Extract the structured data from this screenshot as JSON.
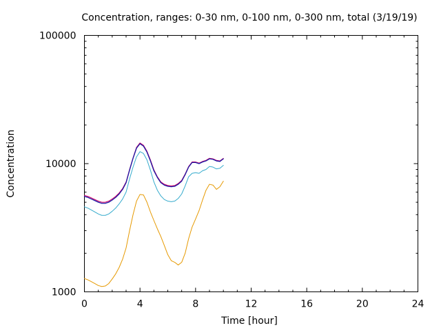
{
  "chart_data": {
    "type": "line",
    "title": "Concentration, ranges: 0-30 nm, 0-100 nm, 0-300 nm, total (3/19/19)",
    "xlabel": "Time [hour]",
    "ylabel": "Concentration",
    "xlim": [
      0,
      24
    ],
    "ylim": [
      1000,
      100000
    ],
    "yscale": "log",
    "xticks": [
      0,
      4,
      8,
      12,
      16,
      20,
      24
    ],
    "yticks": [
      1000,
      10000,
      100000
    ],
    "grid": false,
    "legend": "none",
    "series": [
      {
        "color": "#1a1aa6",
        "width": 1.3,
        "x": [
          0,
          0.25,
          0.5,
          0.75,
          1.0,
          1.25,
          1.5,
          1.75,
          2.0,
          2.25,
          2.5,
          2.75,
          3.0,
          3.25,
          3.5,
          3.75,
          4.0,
          4.25,
          4.5,
          4.75,
          5.0,
          5.25,
          5.5,
          5.75,
          6.0,
          6.25,
          6.5,
          6.75,
          7.0,
          7.25,
          7.5,
          7.75,
          8.0,
          8.25,
          8.5,
          8.75,
          9.0,
          9.25,
          9.5,
          9.75,
          10.0
        ],
        "y": [
          5550,
          5450,
          5300,
          5150,
          5000,
          4900,
          4900,
          5000,
          5200,
          5450,
          5800,
          6300,
          7100,
          8900,
          11000,
          13200,
          14300,
          13700,
          12300,
          10500,
          8800,
          7800,
          7100,
          6800,
          6650,
          6600,
          6650,
          6900,
          7300,
          8200,
          9400,
          10200,
          10200,
          10000,
          10300,
          10500,
          10900,
          10800,
          10500,
          10400,
          10900
        ]
      },
      {
        "color": "#cc0066",
        "width": 1.1,
        "x": [
          0,
          0.25,
          0.5,
          0.75,
          1.0,
          1.25,
          1.5,
          1.75,
          2.0,
          2.25,
          2.5,
          2.75,
          3.0,
          3.25,
          3.5,
          3.75,
          4.0,
          4.25,
          4.5,
          4.75,
          5.0,
          5.25,
          5.5,
          5.75,
          6.0,
          6.25,
          6.5,
          6.75,
          7.0,
          7.25,
          7.5,
          7.75,
          8.0,
          8.25,
          8.5,
          8.75,
          9.0,
          9.25,
          9.5,
          9.75,
          10.0
        ],
        "y": [
          5650,
          5550,
          5400,
          5250,
          5100,
          5000,
          5000,
          5100,
          5300,
          5550,
          5900,
          6400,
          7200,
          9000,
          11100,
          13400,
          14500,
          13900,
          12500,
          10700,
          8950,
          7900,
          7200,
          6900,
          6750,
          6700,
          6750,
          7000,
          7400,
          8300,
          9500,
          10300,
          10300,
          10100,
          10400,
          10600,
          11000,
          10900,
          10600,
          10500,
          11000
        ]
      },
      {
        "color": "#33aacc",
        "width": 1.0,
        "x": [
          0,
          0.25,
          0.5,
          0.75,
          1.0,
          1.25,
          1.5,
          1.75,
          2.0,
          2.25,
          2.5,
          2.75,
          3.0,
          3.25,
          3.5,
          3.75,
          4.0,
          4.25,
          4.5,
          4.75,
          5.0,
          5.25,
          5.5,
          5.75,
          6.0,
          6.25,
          6.5,
          6.75,
          7.0,
          7.25,
          7.5,
          7.75,
          8.0,
          8.25,
          8.5,
          8.75,
          9.0,
          9.25,
          9.5,
          9.75,
          10.0
        ],
        "y": [
          4600,
          4500,
          4350,
          4200,
          4050,
          3950,
          3950,
          4050,
          4250,
          4500,
          4850,
          5300,
          6000,
          7600,
          9400,
          11300,
          12400,
          12000,
          10700,
          8900,
          7200,
          6200,
          5600,
          5250,
          5100,
          5050,
          5100,
          5350,
          5800,
          6700,
          7900,
          8400,
          8500,
          8400,
          8800,
          9000,
          9500,
          9400,
          9100,
          9200,
          9700
        ]
      },
      {
        "color": "#e69900",
        "width": 1.0,
        "x": [
          0,
          0.25,
          0.5,
          0.75,
          1.0,
          1.25,
          1.5,
          1.75,
          2.0,
          2.25,
          2.5,
          2.75,
          3.0,
          3.25,
          3.5,
          3.75,
          4.0,
          4.25,
          4.5,
          4.75,
          5.0,
          5.25,
          5.5,
          5.75,
          6.0,
          6.25,
          6.5,
          6.75,
          7.0,
          7.25,
          7.5,
          7.75,
          8.0,
          8.25,
          8.5,
          8.75,
          9.0,
          9.25,
          9.5,
          9.75,
          10.0
        ],
        "y": [
          1270,
          1240,
          1200,
          1160,
          1120,
          1100,
          1110,
          1160,
          1260,
          1380,
          1550,
          1800,
          2200,
          3000,
          4000,
          5100,
          5750,
          5700,
          5000,
          4200,
          3600,
          3100,
          2700,
          2300,
          1950,
          1750,
          1700,
          1620,
          1700,
          2000,
          2600,
          3200,
          3700,
          4300,
          5200,
          6200,
          6900,
          6800,
          6300,
          6600,
          7300
        ]
      }
    ]
  }
}
